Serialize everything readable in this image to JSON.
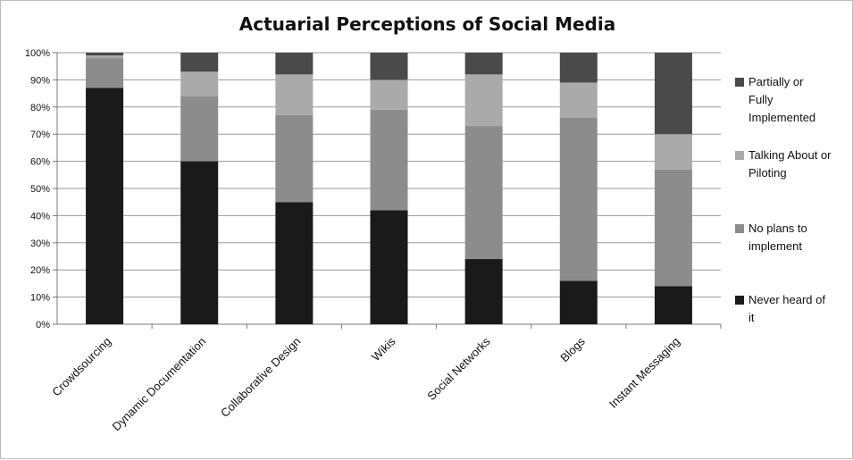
{
  "chart_data": {
    "type": "bar",
    "stacked": true,
    "title": "Actuarial Perceptions of Social Media",
    "categories": [
      "Crowdsourcing",
      "Dynamic Documentation",
      "Collaborative Design",
      "Wikis",
      "Social Networks",
      "Blogs",
      "Instant Messaging"
    ],
    "series": [
      {
        "name": "Never heard of it",
        "color": "#1a1a1a",
        "values": [
          87,
          60,
          45,
          42,
          24,
          16,
          14
        ]
      },
      {
        "name": "No plans to implement",
        "color": "#8c8c8c",
        "values": [
          11,
          24,
          32,
          37,
          49,
          60,
          43
        ]
      },
      {
        "name": "Talking About or Piloting",
        "color": "#aaaaaa",
        "values": [
          1,
          9,
          15,
          11,
          19,
          13,
          13
        ]
      },
      {
        "name": "Partially or Fully Implemented",
        "color": "#4a4a4a",
        "values": [
          1,
          7,
          8,
          10,
          8,
          11,
          30
        ]
      }
    ],
    "ylim": [
      0,
      100
    ],
    "yticks": [
      "0%",
      "10%",
      "20%",
      "30%",
      "40%",
      "50%",
      "60%",
      "70%",
      "80%",
      "90%",
      "100%"
    ],
    "grid": true,
    "legend_position": "right",
    "legend_order": [
      "Partially or Fully Implemented",
      "Talking About or Piloting",
      "No plans to implement",
      "Never heard of it"
    ]
  }
}
